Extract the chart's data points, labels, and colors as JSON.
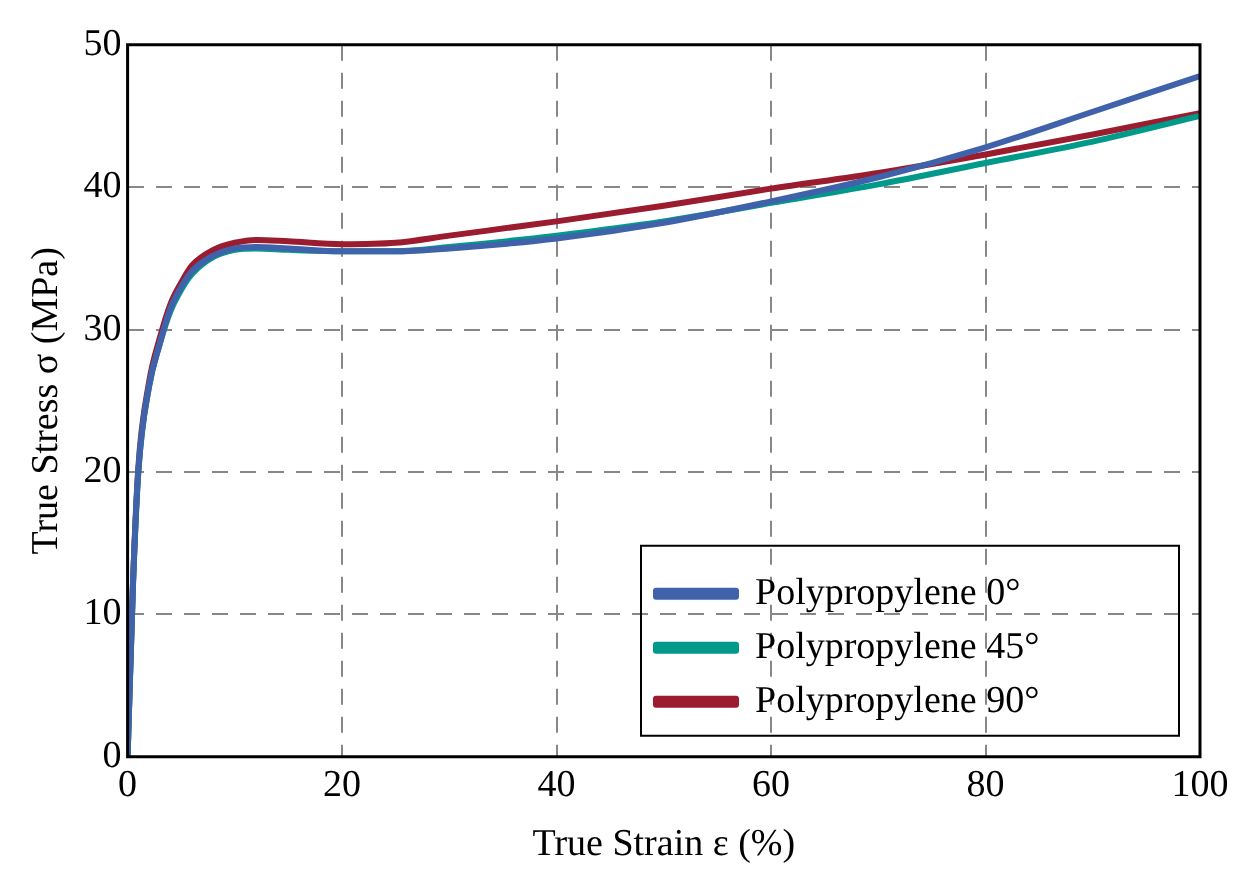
{
  "chart_data": {
    "type": "line",
    "xlabel": "True Strain ε (%)",
    "ylabel": "True Stress σ (MPa)",
    "xlim": [
      0,
      100
    ],
    "ylim": [
      0,
      50
    ],
    "xticks": [
      0,
      20,
      40,
      60,
      80,
      100
    ],
    "yticks": [
      0,
      10,
      20,
      30,
      40,
      50
    ],
    "grid": true,
    "legend": "bottom right",
    "marker": "none",
    "line_style": "solid",
    "series": [
      {
        "name": "Polypropylene 0°",
        "color": "#4062ab",
        "x": [
          0,
          0.5,
          1,
          2,
          3,
          4,
          5,
          6,
          8,
          10,
          12,
          15,
          20,
          25,
          30,
          40,
          50,
          60,
          70,
          80,
          90,
          100
        ],
        "values": [
          0,
          12,
          20,
          26,
          29,
          31.5,
          33,
          34.1,
          35.2,
          35.7,
          35.8,
          35.7,
          35.5,
          35.5,
          35.7,
          36.4,
          37.5,
          39,
          40.7,
          42.8,
          45.3,
          47.8
        ]
      },
      {
        "name": "Polypropylene 45°",
        "color": "#00998a",
        "x": [
          0,
          0.5,
          1,
          2,
          3,
          4,
          5,
          6,
          8,
          10,
          12,
          15,
          20,
          25,
          30,
          40,
          50,
          60,
          70,
          80,
          90,
          100
        ],
        "values": [
          0,
          12,
          20,
          26,
          29,
          31.3,
          32.8,
          33.9,
          35.1,
          35.6,
          35.7,
          35.6,
          35.5,
          35.5,
          35.8,
          36.6,
          37.6,
          38.9,
          40.2,
          41.7,
          43.2,
          45
        ]
      },
      {
        "name": "Polypropylene 90°",
        "color": "#9b1c2e",
        "x": [
          0,
          0.5,
          1,
          2,
          3,
          4,
          5,
          6,
          8,
          10,
          12,
          15,
          20,
          25,
          30,
          40,
          50,
          60,
          70,
          80,
          90,
          100
        ],
        "values": [
          0,
          12.2,
          20.3,
          26.3,
          29.4,
          31.8,
          33.3,
          34.5,
          35.6,
          36.1,
          36.3,
          36.2,
          36,
          36.1,
          36.6,
          37.6,
          38.7,
          39.9,
          41,
          42.3,
          43.7,
          45.2
        ]
      }
    ]
  }
}
